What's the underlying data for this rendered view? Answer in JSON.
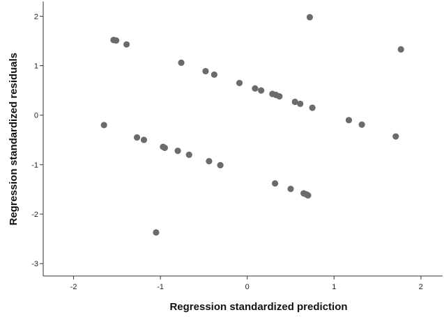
{
  "chart_data": {
    "type": "scatter",
    "title": "",
    "xlabel": "Regression standardized prediction",
    "ylabel": "Regression standardized residuals",
    "xlim": [
      -2.35,
      2.25
    ],
    "ylim": [
      -3.25,
      2.3
    ],
    "xticks": [
      -2,
      -1,
      0,
      1,
      2
    ],
    "yticks": [
      2,
      1,
      0,
      -1,
      -2,
      -3
    ],
    "grid": false,
    "legend": "none",
    "point_color": "#6b6b6b",
    "series": [
      {
        "points": [
          {
            "x": -1.65,
            "y": -0.2
          },
          {
            "x": -1.54,
            "y": 1.52
          },
          {
            "x": -1.51,
            "y": 1.51
          },
          {
            "x": -1.39,
            "y": 1.43
          },
          {
            "x": -1.27,
            "y": -0.45
          },
          {
            "x": -1.19,
            "y": -0.5
          },
          {
            "x": -1.05,
            "y": -2.37
          },
          {
            "x": -0.97,
            "y": -0.64
          },
          {
            "x": -0.95,
            "y": -0.66
          },
          {
            "x": -0.8,
            "y": -0.72
          },
          {
            "x": -0.76,
            "y": 1.06
          },
          {
            "x": -0.67,
            "y": -0.8
          },
          {
            "x": -0.48,
            "y": 0.89
          },
          {
            "x": -0.44,
            "y": -0.93
          },
          {
            "x": -0.38,
            "y": 0.82
          },
          {
            "x": -0.31,
            "y": -1.01
          },
          {
            "x": -0.09,
            "y": 0.65
          },
          {
            "x": 0.09,
            "y": 0.54
          },
          {
            "x": 0.16,
            "y": 0.5
          },
          {
            "x": 0.29,
            "y": 0.43
          },
          {
            "x": 0.32,
            "y": -1.38
          },
          {
            "x": 0.33,
            "y": 0.41
          },
          {
            "x": 0.37,
            "y": 0.38
          },
          {
            "x": 0.5,
            "y": -1.49
          },
          {
            "x": 0.55,
            "y": 0.27
          },
          {
            "x": 0.61,
            "y": 0.23
          },
          {
            "x": 0.65,
            "y": -1.58
          },
          {
            "x": 0.68,
            "y": -1.6
          },
          {
            "x": 0.7,
            "y": -1.62
          },
          {
            "x": 0.72,
            "y": 1.98
          },
          {
            "x": 0.75,
            "y": 0.15
          },
          {
            "x": 1.17,
            "y": -0.1
          },
          {
            "x": 1.32,
            "y": -0.19
          },
          {
            "x": 1.71,
            "y": -0.43
          },
          {
            "x": 1.77,
            "y": 1.33
          }
        ]
      }
    ]
  }
}
